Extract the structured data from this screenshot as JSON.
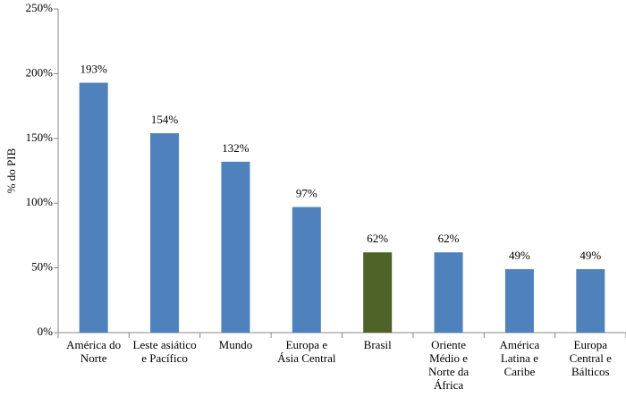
{
  "chart_data": {
    "type": "bar",
    "y_label": "% do PIB",
    "categories": [
      "América do\nNorte",
      "Leste asiático\ne Pacífico",
      "Mundo",
      "Europa e\nÁsia Central",
      "Brasil",
      "Oriente\nMédio e\nNorte da\nÁfrica",
      "América\nLatina e\nCaribe",
      "Europa\nCentral e\nBálticos"
    ],
    "values": [
      193,
      154,
      132,
      97,
      62,
      62,
      49,
      49
    ],
    "value_labels": [
      "193%",
      "154%",
      "132%",
      "97%",
      "62%",
      "62%",
      "49%",
      "49%"
    ],
    "colors": [
      "#4f81bd",
      "#4f81bd",
      "#4f81bd",
      "#4f81bd",
      "#4f6228",
      "#4f81bd",
      "#4f81bd",
      "#4f81bd"
    ],
    "ylim": [
      0,
      250
    ],
    "yticks": [
      {
        "value": 0,
        "label": "0%"
      },
      {
        "value": 50,
        "label": "50%"
      },
      {
        "value": 100,
        "label": "100%"
      },
      {
        "value": 150,
        "label": "150%"
      },
      {
        "value": 200,
        "label": "200%"
      },
      {
        "value": 250,
        "label": "250%"
      }
    ],
    "grid": false
  }
}
